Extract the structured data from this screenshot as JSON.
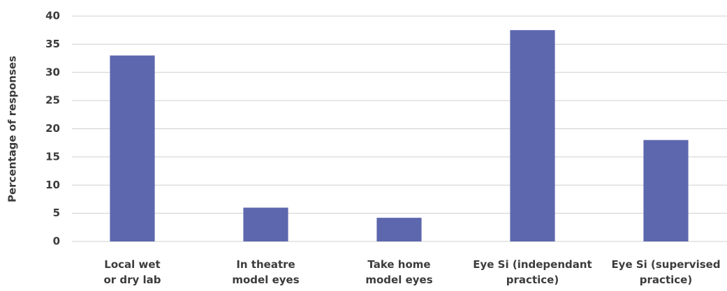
{
  "chart_data": {
    "type": "bar",
    "y_label": "Percentage of responses",
    "categories": [
      "Local wet\nor dry lab",
      "In theatre\nmodel eyes",
      "Take home\nmodel eyes",
      "Eye Si (independant\npractice)",
      "Eye Si (supervised\npractice)"
    ],
    "values": [
      33,
      6,
      4.2,
      37.5,
      18
    ],
    "color": "#5d67ad",
    "ylim": [
      0,
      40
    ],
    "yticks": [
      0,
      5,
      10,
      15,
      20,
      25,
      30,
      35,
      40
    ],
    "grid": true
  }
}
